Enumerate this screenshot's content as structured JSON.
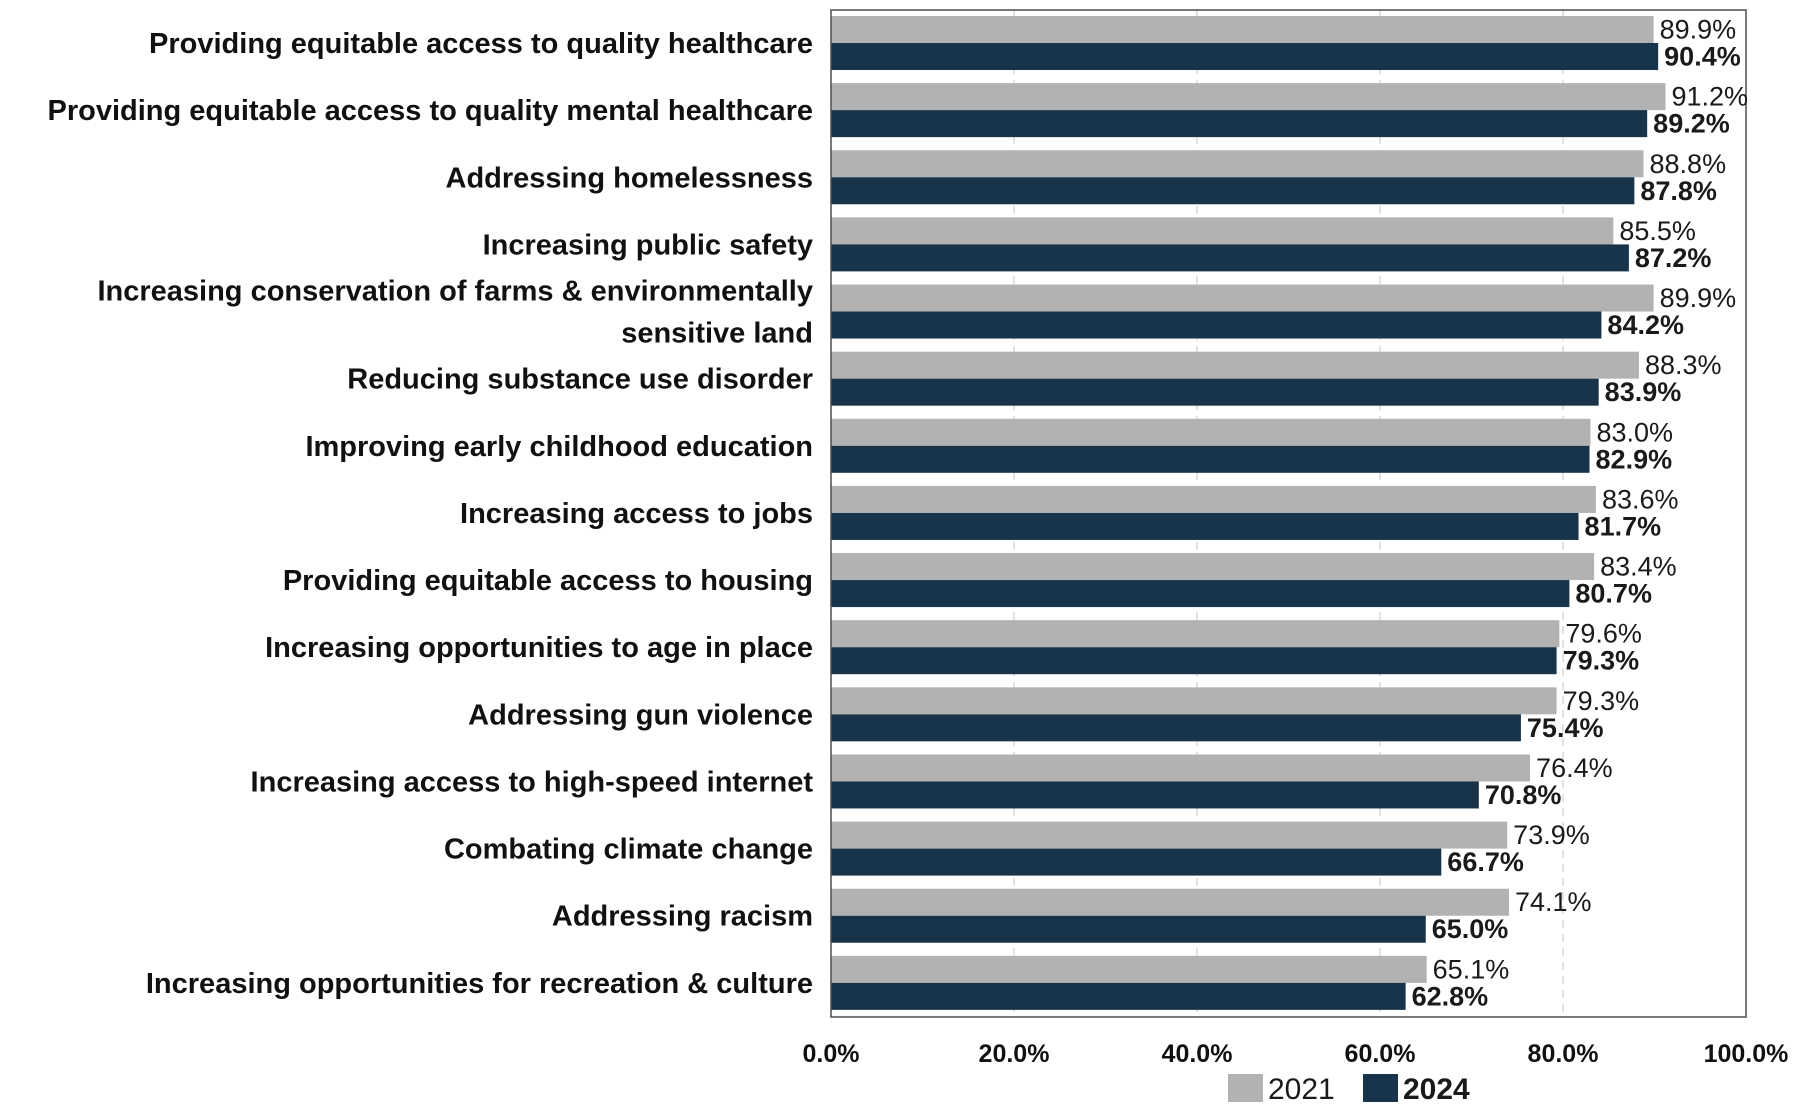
{
  "chart_data": {
    "type": "bar",
    "orientation": "horizontal",
    "title": "",
    "xlabel": "",
    "ylabel": "",
    "xlim": [
      0,
      100
    ],
    "x_ticks": [
      "0.0%",
      "20.0%",
      "40.0%",
      "60.0%",
      "80.0%",
      "100.0%"
    ],
    "grid": "vertical-dashed",
    "legend_position": "bottom",
    "categories": [
      "Providing equitable access to quality healthcare",
      "Providing equitable access to quality mental healthcare",
      "Addressing homelessness",
      "Increasing public safety",
      "Increasing conservation of farms & environmentally sensitive land",
      "Reducing substance use disorder",
      "Improving early childhood education",
      "Increasing access to jobs",
      "Providing equitable access to housing",
      "Increasing opportunities to age in place",
      "Addressing gun violence",
      "Increasing access to high-speed internet",
      "Combating climate change",
      "Addressing racism",
      "Increasing opportunities for recreation & culture"
    ],
    "series": [
      {
        "name": "2021",
        "color": "#b2b2b2",
        "label_weight": "normal",
        "values": [
          89.9,
          91.2,
          88.8,
          85.5,
          89.9,
          88.3,
          83.0,
          83.6,
          83.4,
          79.6,
          79.3,
          76.4,
          73.9,
          74.1,
          65.1
        ],
        "labels": [
          "89.9%",
          "91.2%",
          "88.8%",
          "85.5%",
          "89.9%",
          "88.3%",
          "83.0%",
          "83.6%",
          "83.4%",
          "79.6%",
          "79.3%",
          "76.4%",
          "73.9%",
          "74.1%",
          "65.1%"
        ]
      },
      {
        "name": "2024",
        "color": "#17344a",
        "label_weight": "bold",
        "values": [
          90.4,
          89.2,
          87.8,
          87.2,
          84.2,
          83.9,
          82.9,
          81.7,
          80.7,
          79.3,
          75.4,
          70.8,
          66.7,
          65.0,
          62.8
        ],
        "labels": [
          "90.4%",
          "89.2%",
          "87.8%",
          "87.2%",
          "84.2%",
          "83.9%",
          "82.9%",
          "81.7%",
          "80.7%",
          "79.3%",
          "75.4%",
          "70.8%",
          "66.7%",
          "65.0%",
          "62.8%"
        ]
      }
    ]
  }
}
